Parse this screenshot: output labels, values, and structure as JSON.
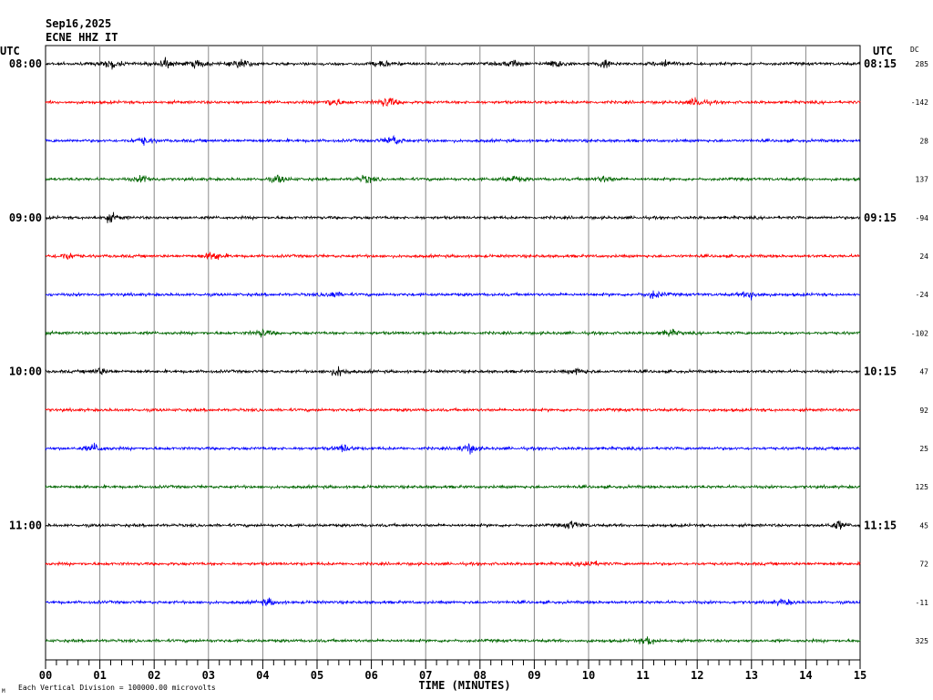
{
  "header": {
    "date": "Sep16,2025",
    "station": "ECNE HHZ IT"
  },
  "chart_data": {
    "type": "line",
    "title": "Sep16,2025",
    "subtitle": "ECNE HHZ IT",
    "xlabel": "TIME (MINUTES)",
    "x_ticks": [
      "00",
      "01",
      "02",
      "03",
      "04",
      "05",
      "06",
      "07",
      "08",
      "09",
      "10",
      "11",
      "12",
      "13",
      "14",
      "15"
    ],
    "xlim": [
      0,
      15
    ],
    "left_axis_label": "UTC",
    "right_axis_label": "UTC",
    "dc_label": "DC",
    "left_hour_labels": [
      "08:00",
      "09:00",
      "10:00",
      "11:00"
    ],
    "right_hour_labels": [
      "08:15",
      "09:15",
      "10:15",
      "11:15"
    ],
    "dc_values": [
      "285",
      "-142",
      "28",
      "137",
      "-94",
      "24",
      "-24",
      "-102",
      "47",
      "92",
      "25",
      "125",
      "45",
      "72",
      "-11",
      "325"
    ],
    "trace_colors": [
      "#000000",
      "#ff0000",
      "#0000ff",
      "#006600"
    ],
    "footer_note": "Each Vertical Division = 100000.00 microvolts",
    "grid": true,
    "events": [
      {
        "trace": 0,
        "minute": 1.2,
        "amp": 2.2
      },
      {
        "trace": 0,
        "minute": 2.2,
        "amp": 2.0
      },
      {
        "trace": 0,
        "minute": 2.8,
        "amp": 1.8
      },
      {
        "trace": 0,
        "minute": 3.6,
        "amp": 2.4
      },
      {
        "trace": 0,
        "minute": 6.2,
        "amp": 1.4
      },
      {
        "trace": 0,
        "minute": 8.6,
        "amp": 1.8
      },
      {
        "trace": 0,
        "minute": 9.4,
        "amp": 1.9
      },
      {
        "trace": 0,
        "minute": 10.3,
        "amp": 1.8
      },
      {
        "trace": 0,
        "minute": 11.4,
        "amp": 1.8
      },
      {
        "trace": 1,
        "minute": 5.3,
        "amp": 2.0
      },
      {
        "trace": 1,
        "minute": 6.3,
        "amp": 2.5
      },
      {
        "trace": 1,
        "minute": 12.0,
        "amp": 2.2
      },
      {
        "trace": 2,
        "minute": 1.8,
        "amp": 1.8
      },
      {
        "trace": 2,
        "minute": 6.4,
        "amp": 2.2
      },
      {
        "trace": 3,
        "minute": 1.8,
        "amp": 1.6
      },
      {
        "trace": 3,
        "minute": 4.3,
        "amp": 1.7
      },
      {
        "trace": 3,
        "minute": 5.9,
        "amp": 1.6
      },
      {
        "trace": 3,
        "minute": 8.6,
        "amp": 1.4
      },
      {
        "trace": 3,
        "minute": 10.3,
        "amp": 1.5
      },
      {
        "trace": 4,
        "minute": 1.2,
        "amp": 1.8
      },
      {
        "trace": 5,
        "minute": 0.4,
        "amp": 1.6
      },
      {
        "trace": 5,
        "minute": 3.1,
        "amp": 2.2
      },
      {
        "trace": 6,
        "minute": 5.3,
        "amp": 1.4
      },
      {
        "trace": 6,
        "minute": 11.2,
        "amp": 1.6
      },
      {
        "trace": 6,
        "minute": 13.0,
        "amp": 1.9
      },
      {
        "trace": 7,
        "minute": 4.0,
        "amp": 1.7
      },
      {
        "trace": 7,
        "minute": 11.5,
        "amp": 1.5
      },
      {
        "trace": 8,
        "minute": 1.0,
        "amp": 1.5
      },
      {
        "trace": 8,
        "minute": 5.4,
        "amp": 2.1
      },
      {
        "trace": 8,
        "minute": 9.8,
        "amp": 1.4
      },
      {
        "trace": 10,
        "minute": 0.9,
        "amp": 1.9
      },
      {
        "trace": 10,
        "minute": 5.5,
        "amp": 1.6
      },
      {
        "trace": 10,
        "minute": 7.8,
        "amp": 2.0
      },
      {
        "trace": 12,
        "minute": 9.7,
        "amp": 1.8
      },
      {
        "trace": 12,
        "minute": 14.6,
        "amp": 1.8
      },
      {
        "trace": 13,
        "minute": 10.0,
        "amp": 1.6
      },
      {
        "trace": 14,
        "minute": 4.1,
        "amp": 1.5
      },
      {
        "trace": 14,
        "minute": 13.6,
        "amp": 1.4
      },
      {
        "trace": 15,
        "minute": 11.1,
        "amp": 1.9
      }
    ]
  }
}
